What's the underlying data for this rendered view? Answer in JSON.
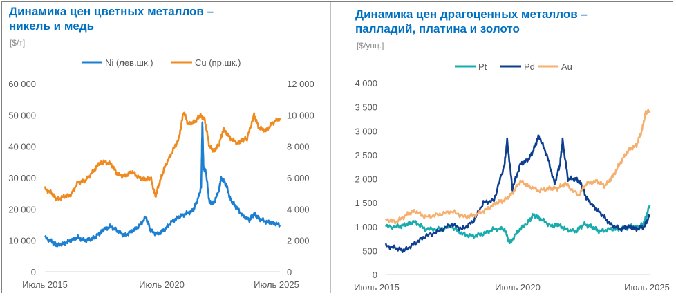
{
  "colors": {
    "ni": "#1c7fd1",
    "cu": "#ee8a1f",
    "pt": "#1aacac",
    "pd": "#0e3f8f",
    "au": "#f5b070",
    "title": "#0070c0"
  },
  "chart_data": [
    {
      "type": "line",
      "title_line1": "Динамика цен цветных металлов –",
      "title_line2": "никель и медь",
      "unit": "[$/т]",
      "xlabels": [
        "Июль 2015",
        "Июль 2020",
        "Июль 2025"
      ],
      "x_range": [
        2015.5,
        2025.5
      ],
      "y_left": {
        "range": [
          0,
          60000
        ],
        "ticks": [
          "0",
          "10 000",
          "20 000",
          "30 000",
          "40 000",
          "50 000",
          "60 000"
        ]
      },
      "y_right": {
        "range": [
          0,
          12000
        ],
        "ticks": [
          "0",
          "2 000",
          "4 000",
          "6 000",
          "8 000",
          "10 000",
          "12 000"
        ]
      },
      "series": [
        {
          "key": "ni",
          "name": "Ni (лев.шк.)",
          "axis": "left",
          "x": [
            2015.5,
            2015.8,
            2016.0,
            2016.3,
            2016.6,
            2016.9,
            2017.2,
            2017.5,
            2017.8,
            2018.0,
            2018.3,
            2018.6,
            2018.9,
            2019.2,
            2019.5,
            2019.8,
            2020.0,
            2020.3,
            2020.6,
            2020.9,
            2021.2,
            2021.5,
            2021.8,
            2022.0,
            2022.15,
            2022.2,
            2022.25,
            2022.35,
            2022.5,
            2022.7,
            2022.9,
            2023.0,
            2023.2,
            2023.4,
            2023.6,
            2023.9,
            2024.2,
            2024.4,
            2024.6,
            2024.9,
            2025.2,
            2025.5
          ],
          "y": [
            11000,
            9500,
            8500,
            9000,
            10000,
            11000,
            10000,
            10500,
            12000,
            13500,
            14500,
            13000,
            11500,
            13000,
            14500,
            17500,
            13000,
            12000,
            13500,
            16000,
            17500,
            18500,
            19500,
            23000,
            27000,
            48000,
            33000,
            32000,
            22000,
            22000,
            26000,
            30000,
            28000,
            23000,
            21000,
            18000,
            16500,
            18500,
            17000,
            16000,
            15500,
            15000
          ]
        },
        {
          "key": "cu",
          "name": "Cu (пр.шк.)",
          "axis": "right",
          "x": [
            2015.5,
            2015.8,
            2016.0,
            2016.3,
            2016.6,
            2016.9,
            2017.2,
            2017.5,
            2017.8,
            2018.0,
            2018.3,
            2018.6,
            2018.9,
            2019.2,
            2019.5,
            2019.8,
            2020.0,
            2020.2,
            2020.4,
            2020.6,
            2020.9,
            2021.2,
            2021.4,
            2021.6,
            2021.9,
            2022.1,
            2022.3,
            2022.5,
            2022.7,
            2022.9,
            2023.1,
            2023.4,
            2023.7,
            2023.9,
            2024.1,
            2024.4,
            2024.6,
            2024.9,
            2025.2,
            2025.5
          ],
          "y": [
            5300,
            5000,
            4600,
            4800,
            4900,
            5700,
            5800,
            6300,
            6900,
            7000,
            6900,
            6200,
            6100,
            6400,
            6000,
            5900,
            6000,
            4800,
            5800,
            6700,
            7600,
            8500,
            10200,
            9400,
            9600,
            10000,
            9700,
            8000,
            7700,
            8100,
            9100,
            8500,
            8200,
            8400,
            8500,
            10000,
            9200,
            9000,
            9500,
            9800
          ]
        }
      ]
    },
    {
      "type": "line",
      "title_line1": "Динамика цен драгоценных металлов –",
      "title_line2": "палладий, платина и золото",
      "unit": "[$/унц.]",
      "xlabels": [
        "Июль 2015",
        "Июль 2020",
        "Июль 2025"
      ],
      "x_range": [
        2015.5,
        2025.5
      ],
      "y_left": {
        "range": [
          0,
          4000
        ],
        "ticks": [
          "0",
          "500",
          "1 000",
          "1 500",
          "2 000",
          "2 500",
          "3 000",
          "3 500",
          "4 000"
        ]
      },
      "series": [
        {
          "key": "pt",
          "name": "Pt",
          "axis": "left",
          "x": [
            2015.5,
            2016.0,
            2016.3,
            2016.6,
            2017.0,
            2017.5,
            2018.0,
            2018.4,
            2018.8,
            2019.2,
            2019.6,
            2020.0,
            2020.2,
            2020.5,
            2020.9,
            2021.1,
            2021.4,
            2021.8,
            2022.0,
            2022.3,
            2022.7,
            2023.0,
            2023.3,
            2023.6,
            2024.0,
            2024.4,
            2024.8,
            2025.1,
            2025.3,
            2025.5
          ],
          "y": [
            1000,
            1000,
            1050,
            1100,
            950,
            950,
            1000,
            850,
            800,
            850,
            950,
            950,
            650,
            900,
            1100,
            1250,
            1150,
            1000,
            1050,
            950,
            900,
            1050,
            1000,
            900,
            950,
            950,
            1000,
            980,
            1100,
            1450
          ]
        },
        {
          "key": "pd",
          "name": "Pd",
          "axis": "left",
          "x": [
            2015.5,
            2015.9,
            2016.2,
            2016.6,
            2017.0,
            2017.5,
            2018.0,
            2018.4,
            2018.8,
            2019.2,
            2019.6,
            2020.0,
            2020.1,
            2020.3,
            2020.6,
            2020.9,
            2021.1,
            2021.3,
            2021.6,
            2021.9,
            2022.1,
            2022.2,
            2022.4,
            2022.7,
            2022.9,
            2023.1,
            2023.4,
            2023.7,
            2024.0,
            2024.4,
            2024.7,
            2025.0,
            2025.3,
            2025.5
          ],
          "y": [
            600,
            550,
            500,
            650,
            800,
            900,
            1050,
            950,
            1100,
            1500,
            1550,
            2300,
            2800,
            1800,
            2300,
            2400,
            2600,
            2900,
            2500,
            1900,
            2300,
            2800,
            2000,
            2000,
            1900,
            1600,
            1400,
            1250,
            1050,
            950,
            1000,
            950,
            1000,
            1250
          ]
        },
        {
          "key": "au",
          "name": "Au",
          "axis": "left",
          "x": [
            2015.5,
            2015.9,
            2016.3,
            2016.6,
            2017.0,
            2017.5,
            2018.0,
            2018.5,
            2018.9,
            2019.3,
            2019.7,
            2020.0,
            2020.3,
            2020.6,
            2020.9,
            2021.3,
            2021.7,
            2022.0,
            2022.3,
            2022.8,
            2023.1,
            2023.5,
            2023.8,
            2024.1,
            2024.4,
            2024.7,
            2025.0,
            2025.2,
            2025.35,
            2025.5
          ],
          "y": [
            1150,
            1100,
            1250,
            1330,
            1200,
            1250,
            1320,
            1200,
            1250,
            1350,
            1500,
            1550,
            1700,
            1950,
            1850,
            1750,
            1800,
            1800,
            1900,
            1650,
            1900,
            1950,
            1850,
            2050,
            2350,
            2600,
            2700,
            3000,
            3400,
            3400
          ]
        }
      ]
    }
  ]
}
